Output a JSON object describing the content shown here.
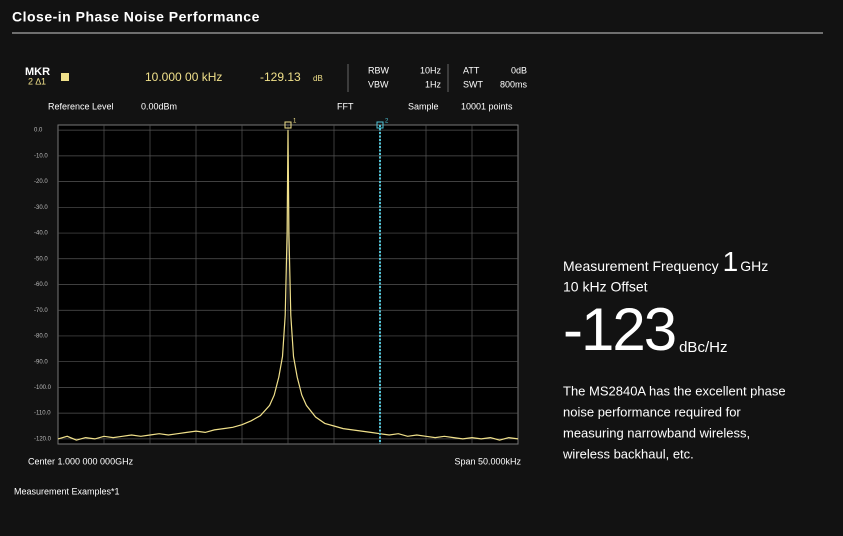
{
  "page_title": "Close-in Phase Noise Performance",
  "footer_note": "Measurement Examples*1",
  "panel": {
    "mkr": "MKR",
    "mkr_id": "2 ∆1",
    "mkr_freq": "10.000 00 kHz",
    "mkr_level": "-129.13",
    "mkr_unit": "dB",
    "rbw_label": "RBW",
    "rbw": "10Hz",
    "vbw_label": "VBW",
    "vbw": "1Hz",
    "att_label": "ATT",
    "att": "0dB",
    "swt_label": "SWT",
    "swt": "800ms",
    "ref_label": "Reference Level",
    "ref": "0.00dBm",
    "mode": "FFT",
    "detector": "Sample",
    "points": "10001 points",
    "center": "Center 1.000 000 000GHz",
    "span": "Span 50.000kHz"
  },
  "spec": {
    "freq_label": "Measurement Frequency",
    "freq_value": "1",
    "freq_unit": "GHz",
    "offset": "10 kHz Offset",
    "noise_value": "-123",
    "noise_unit": "dBc/Hz",
    "description": [
      "The MS2840A has the excellent phase",
      "noise performance required for",
      "measuring narrowband wireless,",
      "wireless backhaul, etc."
    ]
  },
  "chart_data": {
    "type": "line",
    "color": "#f0e08a",
    "grid": true,
    "xlim": [
      -25,
      25
    ],
    "ylim": [
      -122,
      2
    ],
    "yticks": [
      {
        "value": 0,
        "label": "0.0"
      },
      {
        "value": -10,
        "label": "-10.0"
      },
      {
        "value": -20,
        "label": "-20.0"
      },
      {
        "value": -30,
        "label": "-30.0"
      },
      {
        "value": -40,
        "label": "-40.0"
      },
      {
        "value": -50,
        "label": "-50.0"
      },
      {
        "value": -60,
        "label": "-60.0"
      },
      {
        "value": -70,
        "label": "-70.0"
      },
      {
        "value": -80,
        "label": "-80.0"
      },
      {
        "value": -90,
        "label": "-90.0"
      },
      {
        "value": -100,
        "label": "-100.0"
      },
      {
        "value": -110,
        "label": "-110.0"
      },
      {
        "value": -120,
        "label": "-120.0"
      }
    ],
    "markers": [
      {
        "label": "1",
        "x": 0,
        "color": "#f0e08a"
      },
      {
        "label": "2",
        "x": 10,
        "color": "#4fc3d6"
      }
    ],
    "x": [
      -25,
      -24,
      -23,
      -22,
      -21,
      -20,
      -19,
      -18,
      -17,
      -16,
      -15,
      -14,
      -13,
      -12,
      -11,
      -10,
      -9,
      -8,
      -7,
      -6,
      -5,
      -4,
      -3,
      -2,
      -1.5,
      -1,
      -0.6,
      -0.3,
      -0.1,
      0,
      0.1,
      0.3,
      0.6,
      1,
      1.5,
      2,
      3,
      4,
      5,
      6,
      7,
      8,
      9,
      10,
      11,
      12,
      13,
      14,
      15,
      16,
      17,
      18,
      19,
      20,
      21,
      22,
      23,
      24,
      25
    ],
    "values": [
      -120,
      -119,
      -120.5,
      -119.5,
      -120,
      -119,
      -119.5,
      -119,
      -118.5,
      -119,
      -118.5,
      -118,
      -118.5,
      -118,
      -117.5,
      -117,
      -117.5,
      -116.5,
      -116,
      -115.5,
      -114.5,
      -113,
      -111,
      -107,
      -103,
      -96,
      -88,
      -72,
      -40,
      0,
      -40,
      -72,
      -88,
      -96,
      -103,
      -107,
      -111.5,
      -114,
      -115,
      -116,
      -116.5,
      -117,
      -117.5,
      -118,
      -118.5,
      -118,
      -119,
      -118.5,
      -119,
      -119.5,
      -119,
      -119.5,
      -120,
      -119.5,
      -120,
      -119.5,
      -120.5,
      -119.5,
      -120
    ]
  }
}
